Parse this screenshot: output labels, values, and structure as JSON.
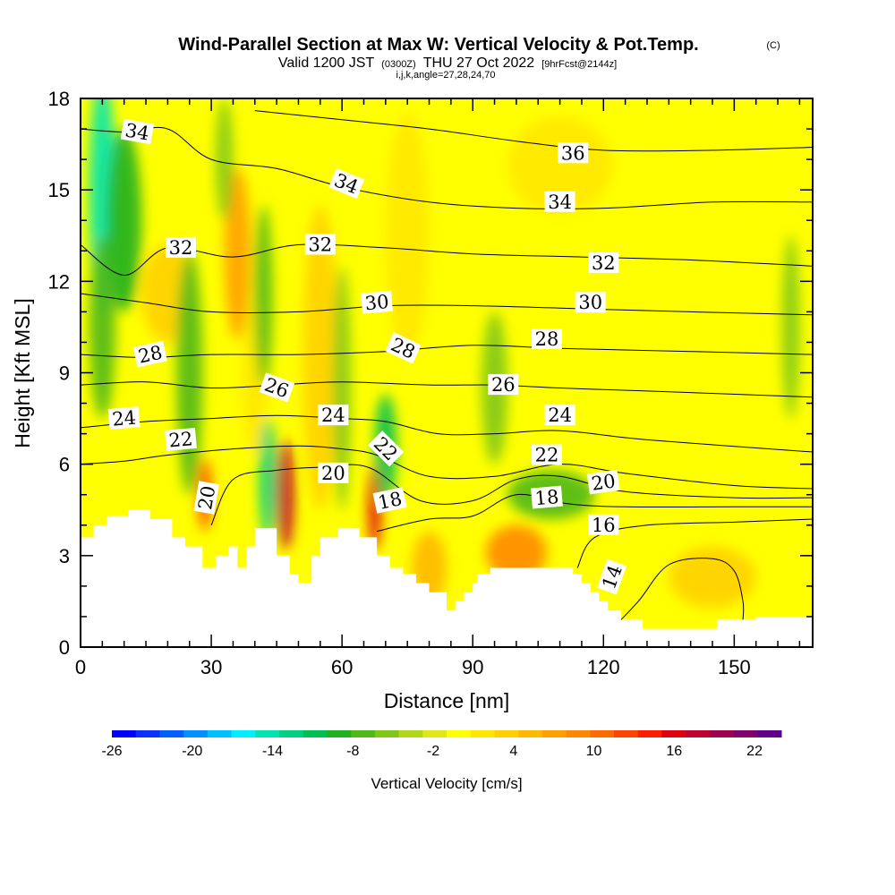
{
  "chart_data": {
    "type": "heatmap",
    "title": "Wind-Parallel Section at Max W: Vertical Velocity & Pot.Temp.",
    "title_mark": "(C)",
    "subtitle_main": "Valid 1200 JST",
    "subtitle_utc": "(0300Z)",
    "subtitle_date": "THU 27 Oct 2022",
    "subtitle_fcst": "[9hrFcst@2144z]",
    "subtitle_params": "i,j,k,angle=27,28,24,70",
    "xlabel": "Distance [nm]",
    "ylabel": "Height [Kft MSL]",
    "xlim": [
      0,
      168
    ],
    "ylim": [
      0,
      18
    ],
    "x_ticks": [
      "0",
      "30",
      "60",
      "90",
      "120",
      "150"
    ],
    "x_tick_values": [
      0,
      30,
      60,
      90,
      120,
      150
    ],
    "y_ticks": [
      "0",
      "3",
      "6",
      "9",
      "12",
      "15",
      "18"
    ],
    "y_tick_values": [
      0,
      3,
      6,
      9,
      12,
      15,
      18
    ],
    "colorbar": {
      "label": "Vertical Velocity [cm/s]",
      "tick_labels": [
        "-26",
        "-20",
        "-14",
        "-8",
        "-2",
        "4",
        "10",
        "16",
        "22"
      ],
      "tick_values": [
        -26,
        -20,
        -14,
        -8,
        -2,
        4,
        10,
        16,
        22
      ],
      "range": [
        -26,
        24
      ],
      "step": 2,
      "colors": [
        "#0000ff",
        "#0a2fff",
        "#0060ff",
        "#0090ff",
        "#00c0ff",
        "#00eeff",
        "#00e5b0",
        "#00d080",
        "#00c050",
        "#20b020",
        "#50b818",
        "#80c818",
        "#b0d818",
        "#e0e818",
        "#ffff00",
        "#ffe800",
        "#ffd000",
        "#ffb800",
        "#ffa000",
        "#ff8800",
        "#ff6a00",
        "#ff4400",
        "#ff1a00",
        "#e00010",
        "#c00030",
        "#a00050",
        "#800070",
        "#60008c"
      ]
    },
    "field_background": "#ffff00",
    "features": [
      {
        "kind": "updraft",
        "x": 20,
        "y": 11.6,
        "value": 6,
        "rx": 6,
        "ry": 1.6
      },
      {
        "kind": "updraft",
        "x": 36,
        "y": 12.9,
        "value": 10,
        "rx": 3,
        "ry": 2.8
      },
      {
        "kind": "updraft",
        "x": 40,
        "y": 8.8,
        "value": 4,
        "rx": 3,
        "ry": 2.5
      },
      {
        "kind": "updraft",
        "x": 28.5,
        "y": 5.0,
        "value": 16,
        "rx": 1.5,
        "ry": 1.2
      },
      {
        "kind": "updraft",
        "x": 47,
        "y": 5.0,
        "value": 22,
        "rx": 2,
        "ry": 1.8
      },
      {
        "kind": "updraft",
        "x": 67.5,
        "y": 4.6,
        "value": 20,
        "rx": 1.5,
        "ry": 1.4
      },
      {
        "kind": "updraft",
        "x": 55,
        "y": 9.5,
        "value": 6,
        "rx": 4,
        "ry": 5
      },
      {
        "kind": "updraft",
        "x": 75,
        "y": 13.5,
        "value": 4,
        "rx": 5,
        "ry": 4
      },
      {
        "kind": "updraft",
        "x": 100,
        "y": 3.1,
        "value": 12,
        "rx": 7,
        "ry": 0.9
      },
      {
        "kind": "updraft",
        "x": 80,
        "y": 2.6,
        "value": 8,
        "rx": 4,
        "ry": 1.2
      },
      {
        "kind": "updraft",
        "x": 145,
        "y": 2.3,
        "value": 6,
        "rx": 10,
        "ry": 1.0
      },
      {
        "kind": "updraft",
        "x": 110,
        "y": 15.8,
        "value": 4,
        "rx": 12,
        "ry": 1.6
      },
      {
        "kind": "downdraft",
        "x": 5,
        "y": 14.8,
        "value": -14,
        "rx": 3,
        "ry": 4
      },
      {
        "kind": "downdraft",
        "x": 5,
        "y": 10.5,
        "value": -6,
        "rx": 3,
        "ry": 3
      },
      {
        "kind": "downdraft",
        "x": 10,
        "y": 14,
        "value": -8,
        "rx": 4,
        "ry": 3
      },
      {
        "kind": "downdraft",
        "x": 25,
        "y": 9,
        "value": -6,
        "rx": 3,
        "ry": 4
      },
      {
        "kind": "downdraft",
        "x": 42,
        "y": 11.5,
        "value": -6,
        "rx": 2,
        "ry": 3
      },
      {
        "kind": "downdraft",
        "x": 43,
        "y": 5.5,
        "value": -12,
        "rx": 2,
        "ry": 2
      },
      {
        "kind": "downdraft",
        "x": 60,
        "y": 8.5,
        "value": -4,
        "rx": 2,
        "ry": 4
      },
      {
        "kind": "downdraft",
        "x": 70,
        "y": 6.5,
        "value": -10,
        "rx": 2.5,
        "ry": 1.8
      },
      {
        "kind": "downdraft",
        "x": 33,
        "y": 16,
        "value": -4,
        "rx": 2,
        "ry": 2
      },
      {
        "kind": "downdraft",
        "x": 95,
        "y": 8.5,
        "value": -4,
        "rx": 3,
        "ry": 2.5
      },
      {
        "kind": "downdraft",
        "x": 108,
        "y": 5.0,
        "value": -6,
        "rx": 10,
        "ry": 0.8
      },
      {
        "kind": "downdraft",
        "x": 163,
        "y": 10.5,
        "value": -4,
        "rx": 2,
        "ry": 3
      }
    ],
    "terrain_top": [
      [
        0,
        3.6
      ],
      [
        3,
        3.6
      ],
      [
        3,
        4.0
      ],
      [
        6,
        4.0
      ],
      [
        6,
        4.3
      ],
      [
        11,
        4.3
      ],
      [
        11,
        4.5
      ],
      [
        16,
        4.5
      ],
      [
        16,
        4.2
      ],
      [
        21,
        4.2
      ],
      [
        21,
        3.6
      ],
      [
        24,
        3.6
      ],
      [
        24,
        3.3
      ],
      [
        28,
        3.3
      ],
      [
        28,
        2.6
      ],
      [
        31,
        2.6
      ],
      [
        31,
        3.0
      ],
      [
        34,
        3.0
      ],
      [
        34,
        3.3
      ],
      [
        36,
        3.3
      ],
      [
        36,
        2.6
      ],
      [
        38,
        2.6
      ],
      [
        38,
        3.3
      ],
      [
        40,
        3.3
      ],
      [
        40,
        3.9
      ],
      [
        45,
        3.9
      ],
      [
        45,
        3.0
      ],
      [
        48,
        3.0
      ],
      [
        48,
        2.4
      ],
      [
        50,
        2.4
      ],
      [
        50,
        2.1
      ],
      [
        53,
        2.1
      ],
      [
        53,
        3.0
      ],
      [
        55,
        3.0
      ],
      [
        55,
        3.6
      ],
      [
        59,
        3.6
      ],
      [
        59,
        3.9
      ],
      [
        64,
        3.9
      ],
      [
        64,
        3.6
      ],
      [
        68,
        3.6
      ],
      [
        68,
        3.0
      ],
      [
        71,
        3.0
      ],
      [
        71,
        2.6
      ],
      [
        74,
        2.6
      ],
      [
        74,
        2.4
      ],
      [
        77,
        2.4
      ],
      [
        77,
        2.1
      ],
      [
        80,
        2.1
      ],
      [
        80,
        1.8
      ],
      [
        84,
        1.8
      ],
      [
        84,
        1.2
      ],
      [
        86,
        1.2
      ],
      [
        86,
        1.5
      ],
      [
        88,
        1.5
      ],
      [
        88,
        1.8
      ],
      [
        90,
        1.8
      ],
      [
        90,
        2.1
      ],
      [
        91,
        2.1
      ],
      [
        91,
        2.4
      ],
      [
        94,
        2.4
      ],
      [
        94,
        2.6
      ],
      [
        113,
        2.6
      ],
      [
        113,
        2.4
      ],
      [
        115,
        2.4
      ],
      [
        115,
        2.1
      ],
      [
        117,
        2.1
      ],
      [
        117,
        1.8
      ],
      [
        119,
        1.8
      ],
      [
        119,
        1.5
      ],
      [
        121,
        1.5
      ],
      [
        121,
        1.2
      ],
      [
        124,
        1.2
      ],
      [
        124,
        0.9
      ],
      [
        129,
        0.9
      ],
      [
        129,
        0.6
      ],
      [
        146,
        0.6
      ],
      [
        146,
        0.9
      ],
      [
        155,
        0.9
      ],
      [
        155,
        1.0
      ],
      [
        168,
        1.0
      ]
    ],
    "isentropes": [
      {
        "level": 14,
        "points": [
          [
            122,
            0.6
          ],
          [
            128,
            1.5
          ],
          [
            135,
            2.7
          ],
          [
            145,
            2.9
          ],
          [
            150,
            2.5
          ],
          [
            152,
            1.5
          ],
          [
            152,
            0.9
          ]
        ]
      },
      {
        "level": 16,
        "points": [
          [
            114,
            2.6
          ],
          [
            118,
            3.6
          ],
          [
            130,
            4.0
          ],
          [
            150,
            4.1
          ],
          [
            168,
            4.2
          ]
        ]
      },
      {
        "level": 18,
        "points": [
          [
            68,
            3.8
          ],
          [
            80,
            4.2
          ],
          [
            90,
            4.3
          ],
          [
            100,
            5.0
          ],
          [
            112,
            4.7
          ],
          [
            125,
            4.6
          ],
          [
            150,
            4.6
          ],
          [
            168,
            4.6
          ]
        ]
      },
      {
        "level": 20,
        "points": [
          [
            30,
            4.0
          ],
          [
            35,
            5.5
          ],
          [
            45,
            5.8
          ],
          [
            55,
            5.9
          ],
          [
            66,
            5.9
          ],
          [
            78,
            4.8
          ],
          [
            90,
            4.8
          ],
          [
            100,
            5.5
          ],
          [
            110,
            5.6
          ],
          [
            125,
            5.1
          ],
          [
            150,
            4.9
          ],
          [
            168,
            4.9
          ]
        ]
      },
      {
        "level": 22,
        "points": [
          [
            0,
            6.0
          ],
          [
            10,
            6.1
          ],
          [
            20,
            6.3
          ],
          [
            35,
            6.5
          ],
          [
            50,
            6.6
          ],
          [
            60,
            6.5
          ],
          [
            68,
            6.3
          ],
          [
            80,
            5.6
          ],
          [
            95,
            5.6
          ],
          [
            110,
            6.0
          ],
          [
            125,
            5.7
          ],
          [
            150,
            5.3
          ],
          [
            168,
            5.2
          ]
        ]
      },
      {
        "level": 24,
        "points": [
          [
            0,
            7.2
          ],
          [
            15,
            7.4
          ],
          [
            30,
            7.5
          ],
          [
            45,
            7.6
          ],
          [
            60,
            7.5
          ],
          [
            70,
            7.4
          ],
          [
            82,
            7.0
          ],
          [
            95,
            7.0
          ],
          [
            110,
            7.1
          ],
          [
            130,
            6.8
          ],
          [
            168,
            6.4
          ]
        ]
      },
      {
        "level": 26,
        "points": [
          [
            0,
            8.6
          ],
          [
            15,
            8.7
          ],
          [
            30,
            8.5
          ],
          [
            45,
            8.6
          ],
          [
            60,
            8.7
          ],
          [
            80,
            8.6
          ],
          [
            95,
            8.6
          ],
          [
            110,
            8.5
          ],
          [
            130,
            8.4
          ],
          [
            168,
            8.2
          ]
        ]
      },
      {
        "level": 28,
        "points": [
          [
            0,
            9.6
          ],
          [
            15,
            9.5
          ],
          [
            30,
            9.6
          ],
          [
            50,
            9.6
          ],
          [
            70,
            9.7
          ],
          [
            90,
            9.9
          ],
          [
            110,
            9.8
          ],
          [
            140,
            9.7
          ],
          [
            168,
            9.6
          ]
        ]
      },
      {
        "level": 30,
        "points": [
          [
            0,
            11.6
          ],
          [
            15,
            11.3
          ],
          [
            30,
            11.0
          ],
          [
            50,
            11.0
          ],
          [
            70,
            11.2
          ],
          [
            90,
            11.2
          ],
          [
            115,
            11.1
          ],
          [
            140,
            11.0
          ],
          [
            168,
            10.9
          ]
        ]
      },
      {
        "level": 32,
        "points": [
          [
            0,
            13.2
          ],
          [
            10,
            12.2
          ],
          [
            20,
            13.1
          ],
          [
            35,
            12.8
          ],
          [
            50,
            13.2
          ],
          [
            70,
            13.1
          ],
          [
            90,
            12.9
          ],
          [
            115,
            12.8
          ],
          [
            140,
            12.7
          ],
          [
            168,
            12.5
          ]
        ]
      },
      {
        "level": 34,
        "points": [
          [
            0,
            17.0
          ],
          [
            10,
            16.9
          ],
          [
            20,
            17.0
          ],
          [
            30,
            16.0
          ],
          [
            45,
            15.7
          ],
          [
            60,
            15.1
          ],
          [
            80,
            14.6
          ],
          [
            100,
            14.4
          ],
          [
            120,
            14.4
          ],
          [
            145,
            14.6
          ],
          [
            168,
            14.6
          ]
        ]
      },
      {
        "level": 36,
        "points": [
          [
            40,
            17.6
          ],
          [
            60,
            17.3
          ],
          [
            80,
            17.0
          ],
          [
            100,
            16.6
          ],
          [
            120,
            16.3
          ],
          [
            145,
            16.3
          ],
          [
            168,
            16.4
          ]
        ]
      }
    ],
    "contour_labels": [
      {
        "text": "34",
        "x": 13,
        "y": 16.9,
        "angle": 10
      },
      {
        "text": "34",
        "x": 61,
        "y": 15.2,
        "angle": 22
      },
      {
        "text": "36",
        "x": 113,
        "y": 16.2,
        "angle": 0
      },
      {
        "text": "34",
        "x": 110,
        "y": 14.6,
        "angle": 0
      },
      {
        "text": "32",
        "x": 23,
        "y": 13.1,
        "angle": 0
      },
      {
        "text": "32",
        "x": 55,
        "y": 13.2,
        "angle": 0
      },
      {
        "text": "32",
        "x": 120,
        "y": 12.6,
        "angle": 0
      },
      {
        "text": "30",
        "x": 68,
        "y": 11.3,
        "angle": -5
      },
      {
        "text": "30",
        "x": 117,
        "y": 11.3,
        "angle": 0
      },
      {
        "text": "28",
        "x": 16,
        "y": 9.6,
        "angle": -12
      },
      {
        "text": "28",
        "x": 74,
        "y": 9.8,
        "angle": 25
      },
      {
        "text": "28",
        "x": 107,
        "y": 10.1,
        "angle": 0
      },
      {
        "text": "26",
        "x": 45,
        "y": 8.5,
        "angle": 20
      },
      {
        "text": "26",
        "x": 97,
        "y": 8.6,
        "angle": 0
      },
      {
        "text": "24",
        "x": 10,
        "y": 7.5,
        "angle": -5
      },
      {
        "text": "24",
        "x": 58,
        "y": 7.6,
        "angle": 0
      },
      {
        "text": "24",
        "x": 110,
        "y": 7.6,
        "angle": 0
      },
      {
        "text": "22",
        "x": 23,
        "y": 6.8,
        "angle": -5
      },
      {
        "text": "22",
        "x": 70,
        "y": 6.5,
        "angle": 45
      },
      {
        "text": "22",
        "x": 107,
        "y": 6.3,
        "angle": 0
      },
      {
        "text": "20",
        "x": 29,
        "y": 4.9,
        "angle": -80
      },
      {
        "text": "20",
        "x": 58,
        "y": 5.7,
        "angle": 0
      },
      {
        "text": "20",
        "x": 120,
        "y": 5.4,
        "angle": -8
      },
      {
        "text": "18",
        "x": 71,
        "y": 4.8,
        "angle": -12
      },
      {
        "text": "18",
        "x": 107,
        "y": 4.9,
        "angle": -5
      },
      {
        "text": "16",
        "x": 120,
        "y": 4.0,
        "angle": 0
      },
      {
        "text": "14",
        "x": 122,
        "y": 2.3,
        "angle": -70
      }
    ]
  }
}
